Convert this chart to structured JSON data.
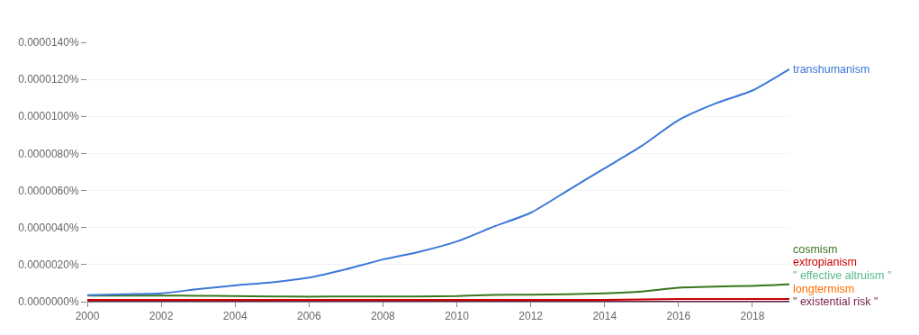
{
  "chart_data": {
    "type": "line",
    "x": [
      2000,
      2001,
      2002,
      2003,
      2004,
      2005,
      2006,
      2007,
      2008,
      2009,
      2010,
      2011,
      2012,
      2013,
      2014,
      2015,
      2016,
      2017,
      2018,
      2019
    ],
    "series": [
      {
        "name": "transhumanism",
        "color": "#3c78d8",
        "values": [
          3.5e-07,
          4e-07,
          4.5e-07,
          6.8e-07,
          8.8e-07,
          1.05e-06,
          1.3e-06,
          1.75e-06,
          2.28e-06,
          2.7e-06,
          3.25e-06,
          4.05e-06,
          4.8e-06,
          6e-06,
          7.2e-06,
          8.4e-06,
          9.8e-06,
          1.07e-05,
          1.14e-05,
          1.255e-05
        ]
      },
      {
        "name": "cosmism",
        "color": "#38761d",
        "values": [
          3.3e-07,
          3.3e-07,
          3.3e-07,
          3.2e-07,
          3e-07,
          2.8e-07,
          2.7e-07,
          2.8e-07,
          2.8e-07,
          2.8e-07,
          3e-07,
          3.7e-07,
          3.8e-07,
          4e-07,
          4.5e-07,
          5.5e-07,
          7.5e-07,
          8.2e-07,
          8.5e-07,
          9.3e-07
        ]
      },
      {
        "name": "extropianism",
        "color": "#cc0000",
        "values": [
          1e-07,
          1e-07,
          1e-07,
          1e-07,
          1e-07,
          1e-07,
          1e-07,
          1e-07,
          1e-07,
          1e-07,
          1e-07,
          1e-07,
          1e-07,
          1e-07,
          1e-07,
          1.2e-07,
          1.4e-07,
          1.5e-07,
          1.5e-07,
          1.5e-07
        ]
      },
      {
        "name": "\" effective altruism \"",
        "color": "#57bb8a",
        "values": [
          null,
          null,
          null,
          null,
          null,
          null,
          null,
          null,
          null,
          null,
          null,
          null,
          null,
          null,
          null,
          null,
          null,
          null,
          null,
          null
        ]
      },
      {
        "name": "longtermism",
        "color": "#ff6d00",
        "values": [
          null,
          null,
          null,
          null,
          null,
          null,
          null,
          null,
          null,
          null,
          null,
          null,
          null,
          null,
          null,
          null,
          null,
          null,
          null,
          null
        ]
      },
      {
        "name": "\" existential risk \"",
        "color": "#741b47",
        "values": [
          0,
          0,
          0,
          0,
          0,
          0,
          0,
          0,
          0,
          0,
          0,
          0,
          0,
          0,
          0,
          0,
          0,
          0,
          0,
          0
        ]
      }
    ],
    "xlim": [
      2000,
      2019
    ],
    "xticks": [
      2000,
      2002,
      2004,
      2006,
      2008,
      2010,
      2012,
      2014,
      2016,
      2018
    ],
    "ylim": [
      0,
      1.4e-05
    ],
    "yticks": [
      {
        "value": 0,
        "label": "0.0000000%"
      },
      {
        "value": 2e-06,
        "label": "0.0000020%"
      },
      {
        "value": 4e-06,
        "label": "0.0000040%"
      },
      {
        "value": 6e-06,
        "label": "0.0000060%"
      },
      {
        "value": 8e-06,
        "label": "0.0000080%"
      },
      {
        "value": 1e-05,
        "label": "0.0000100%"
      },
      {
        "value": 1.2e-05,
        "label": "0.0000120%"
      },
      {
        "value": 1.4e-05,
        "label": "0.0000140%"
      }
    ],
    "grid": "y",
    "legend": false,
    "marker": "none",
    "line_style": "solid"
  }
}
